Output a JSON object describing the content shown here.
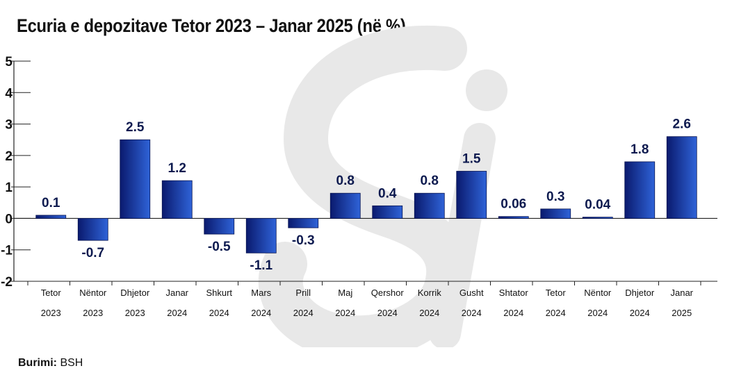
{
  "title": "Ecuria e depozitave Tetor 2023 – Janar 2025 (në %)",
  "source": {
    "label": "Burimi:",
    "value": "BSH"
  },
  "colors": {
    "bar_dark": "#0a1a6e",
    "bar_light": "#2f63d8",
    "label": "#0d1a4f",
    "watermark": "#e6e6e6"
  },
  "chart_data": {
    "type": "bar",
    "categories": [
      [
        "Tetor",
        "2023"
      ],
      [
        "Nëntor",
        "2023"
      ],
      [
        "Dhjetor",
        "2023"
      ],
      [
        "Janar",
        "2024"
      ],
      [
        "Shkurt",
        "2024"
      ],
      [
        "Mars",
        "2024"
      ],
      [
        "Prill",
        "2024"
      ],
      [
        "Maj",
        "2024"
      ],
      [
        "Qershor",
        "2024"
      ],
      [
        "Korrik",
        "2024"
      ],
      [
        "Gusht",
        "2024"
      ],
      [
        "Shtator",
        "2024"
      ],
      [
        "Tetor",
        "2024"
      ],
      [
        "Nëntor",
        "2024"
      ],
      [
        "Dhjetor",
        "2024"
      ],
      [
        "Janar",
        "2025"
      ]
    ],
    "values": [
      0.1,
      -0.7,
      2.5,
      1.2,
      -0.5,
      -1.1,
      -0.3,
      0.8,
      0.4,
      0.8,
      1.5,
      0.06,
      0.3,
      0.04,
      1.8,
      2.6
    ],
    "value_labels": [
      "0.1",
      "-0.7",
      "2.5",
      "1.2",
      "-0.5",
      "-1.1",
      "-0.3",
      "0.8",
      "0.4",
      "0.8",
      "1.5",
      "0.06",
      "0.3",
      "0.04",
      "1.8",
      "2.6"
    ],
    "ylim": [
      -2,
      5
    ],
    "yticks": [
      "-2",
      "-1",
      "0",
      "1",
      "2",
      "3",
      "4",
      "5"
    ],
    "grid": false,
    "legend": "none"
  }
}
